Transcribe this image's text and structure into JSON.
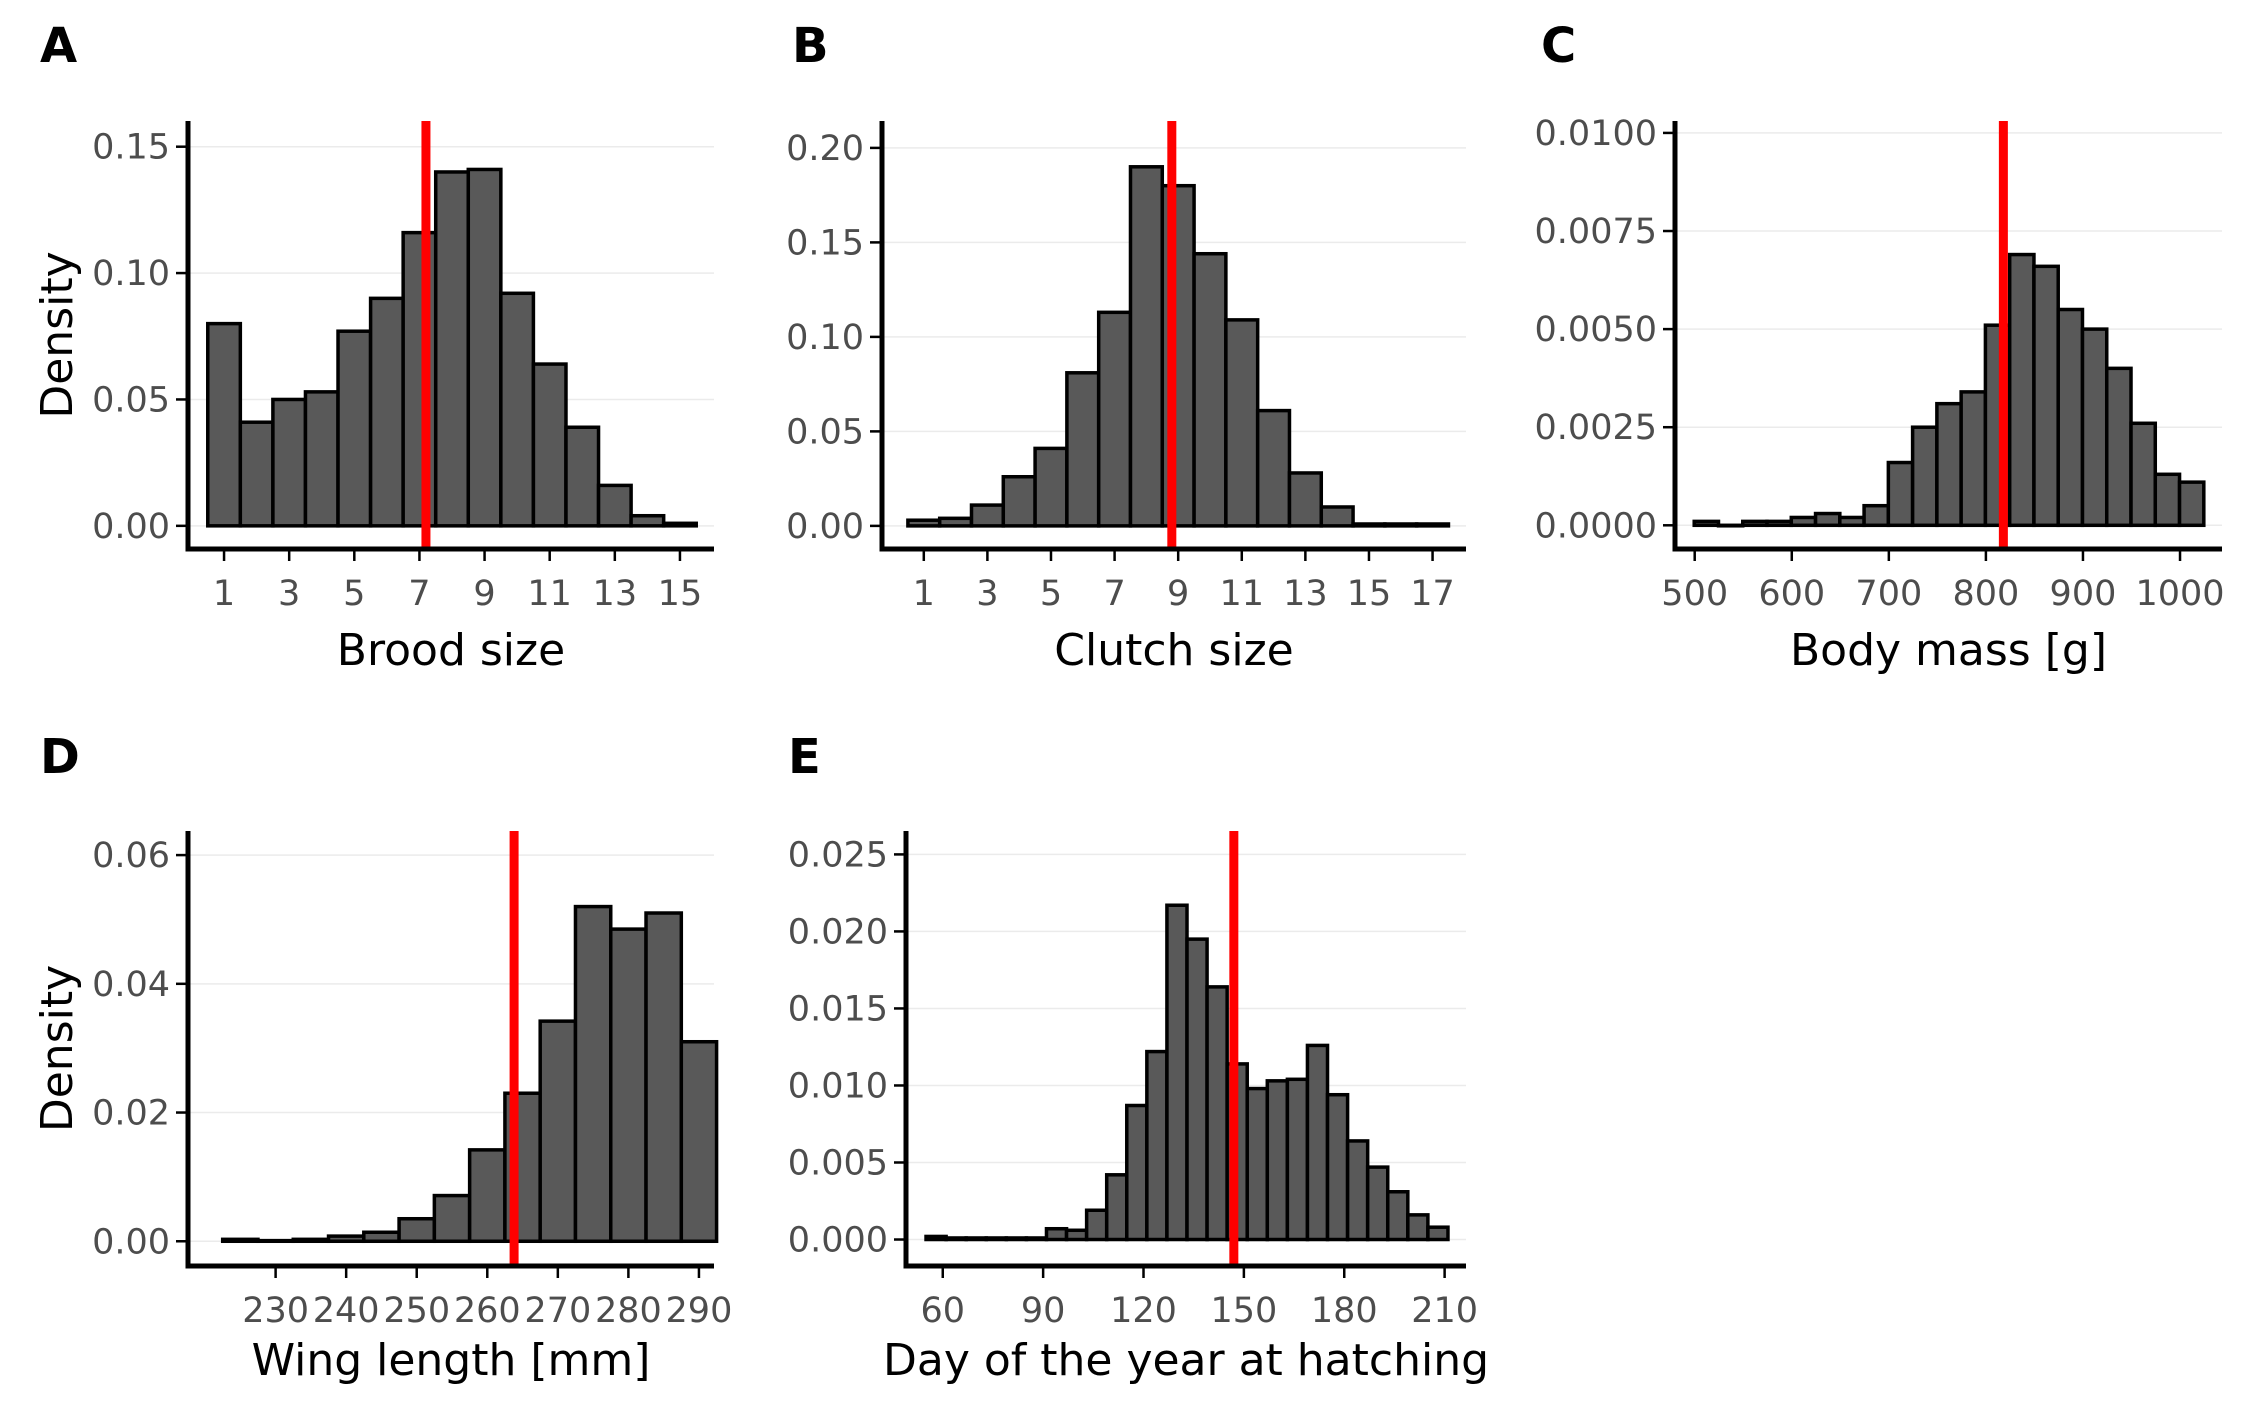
{
  "figure": {
    "background": "#ffffff",
    "bar_fill": "#595959",
    "bar_stroke": "#000000",
    "reference_line_color": "#ff0000"
  },
  "chart_data": [
    {
      "panel": "A",
      "type": "bar",
      "xlabel": "Brood size",
      "ylabel": "Density",
      "bin_centers": [
        1,
        2,
        3,
        4,
        5,
        6,
        7,
        8,
        9,
        10,
        11,
        12,
        13,
        14,
        15
      ],
      "values": [
        0.08,
        0.041,
        0.05,
        0.053,
        0.077,
        0.09,
        0.116,
        0.14,
        0.141,
        0.092,
        0.064,
        0.039,
        0.016,
        0.004,
        0.001
      ],
      "xlim": [
        0.2,
        15.8
      ],
      "xticks": [
        1,
        3,
        5,
        7,
        9,
        11,
        13,
        15
      ],
      "ylim": [
        -0.006,
        0.157
      ],
      "yticks": [
        0.0,
        0.05,
        0.1,
        0.15
      ],
      "ytick_labels": [
        "0.00",
        "0.05",
        "0.10",
        "0.15"
      ],
      "reference_line": 7.2,
      "grid": "horizontal, faint"
    },
    {
      "panel": "B",
      "type": "bar",
      "xlabel": "Clutch size",
      "ylabel": "",
      "bin_centers": [
        1,
        2,
        3,
        4,
        5,
        6,
        7,
        8,
        9,
        10,
        11,
        12,
        13,
        14,
        15,
        16,
        17
      ],
      "values": [
        0.003,
        0.004,
        0.011,
        0.026,
        0.041,
        0.081,
        0.113,
        0.19,
        0.18,
        0.144,
        0.109,
        0.061,
        0.028,
        0.01,
        0.001,
        0.001,
        0.001
      ],
      "xlim": [
        0.0,
        17.8
      ],
      "xticks": [
        1,
        3,
        5,
        7,
        9,
        11,
        13,
        15,
        17
      ],
      "ylim": [
        -0.008,
        0.21
      ],
      "yticks": [
        0.0,
        0.05,
        0.1,
        0.15,
        0.2
      ],
      "ytick_labels": [
        "0.00",
        "0.05",
        "0.10",
        "0.15",
        "0.20"
      ],
      "reference_line": 8.8,
      "grid": "horizontal, faint"
    },
    {
      "panel": "C",
      "type": "bar",
      "xlabel": "Body mass [g]",
      "ylabel": "",
      "bin_centers": [
        512,
        537,
        562,
        587,
        612,
        637,
        662,
        687,
        712,
        737,
        762,
        787,
        812,
        837,
        862,
        887,
        912,
        937,
        962,
        987,
        1012
      ],
      "values": [
        0.0001,
        0.0,
        0.0001,
        0.0001,
        0.0002,
        0.0003,
        0.0002,
        0.0005,
        0.0016,
        0.0025,
        0.0031,
        0.0034,
        0.0051,
        0.0069,
        0.0066,
        0.0055,
        0.005,
        0.004,
        0.0026,
        0.0013,
        0.0011
      ],
      "xlim": [
        490,
        1035
      ],
      "xticks": [
        500,
        600,
        700,
        800,
        900,
        1000
      ],
      "ylim": [
        -0.0004,
        0.0101
      ],
      "yticks": [
        0.0,
        0.0025,
        0.005,
        0.0075,
        0.01
      ],
      "ytick_labels": [
        "0.0000",
        "0.0025",
        "0.0050",
        "0.0075",
        "0.0100"
      ],
      "reference_line": 818,
      "grid": "horizontal, faint"
    },
    {
      "panel": "D",
      "type": "bar",
      "xlabel": "Wing length [mm]",
      "ylabel": "Density",
      "bin_centers": [
        225,
        230,
        235,
        240,
        245,
        250,
        255,
        260,
        265,
        270,
        275,
        280,
        285,
        290
      ],
      "values": [
        0.0003,
        0.0001,
        0.0003,
        0.0008,
        0.0014,
        0.0035,
        0.0071,
        0.0142,
        0.023,
        0.0342,
        0.052,
        0.0485,
        0.051,
        0.031
      ],
      "xlim": [
        219,
        291
      ],
      "xticks": [
        230,
        240,
        250,
        260,
        270,
        280,
        290
      ],
      "ylim": [
        -0.0026,
        0.0625
      ],
      "yticks": [
        0.0,
        0.02,
        0.04,
        0.06
      ],
      "ytick_labels": [
        "0.00",
        "0.02",
        "0.04",
        "0.06"
      ],
      "reference_line": 263.8,
      "grid": "horizontal, faint"
    },
    {
      "panel": "E",
      "type": "bar",
      "xlabel": "Day of the year at hatching",
      "ylabel": "",
      "bin_centers": [
        58,
        64,
        70,
        76,
        82,
        88,
        94,
        100,
        106,
        112,
        118,
        124,
        130,
        136,
        142,
        148,
        154,
        160,
        166,
        172,
        178,
        184,
        190,
        196,
        202,
        208
      ],
      "values": [
        0.0002,
        0.0001,
        0.0001,
        0.0001,
        0.0001,
        0.0001,
        0.0007,
        0.0006,
        0.0019,
        0.0042,
        0.0087,
        0.0122,
        0.0217,
        0.0195,
        0.0164,
        0.0114,
        0.0098,
        0.0103,
        0.0104,
        0.0126,
        0.0094,
        0.0064,
        0.0047,
        0.0031,
        0.0016,
        0.0008
      ],
      "xlim": [
        52,
        214
      ],
      "xticks": [
        60,
        90,
        120,
        150,
        180,
        210
      ],
      "ylim": [
        -0.0012,
        0.026
      ],
      "yticks": [
        0.0,
        0.005,
        0.01,
        0.015,
        0.02,
        0.025
      ],
      "ytick_labels": [
        "0.000",
        "0.005",
        "0.010",
        "0.015",
        "0.020",
        "0.025"
      ],
      "reference_line": 147,
      "grid": "horizontal, faint"
    }
  ]
}
